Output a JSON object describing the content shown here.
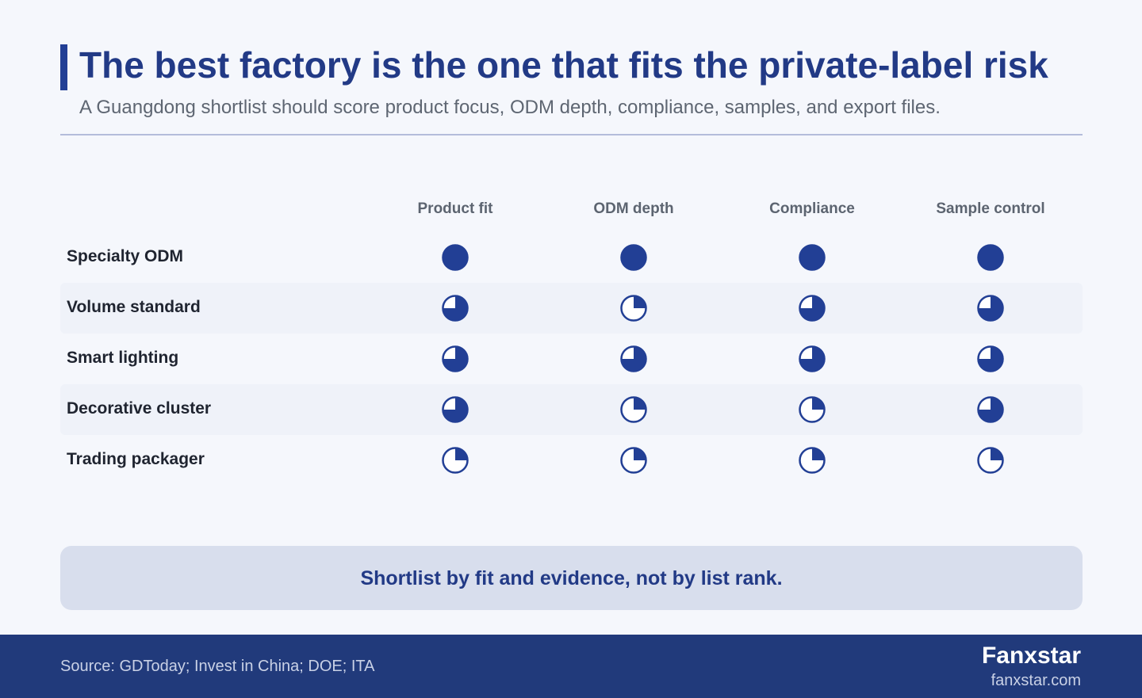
{
  "header": {
    "title": "The best factory is the one that fits the private-label risk",
    "subtitle": "A Guangdong shortlist should score product focus, ODM depth, compliance, samples, and export files."
  },
  "chart_data": {
    "type": "table",
    "encoding": "harvey-ball",
    "scale_max": 1.0,
    "columns": [
      "Product fit",
      "ODM depth",
      "Compliance",
      "Sample control"
    ],
    "rows": [
      {
        "label": "Specialty ODM",
        "values": [
          1.0,
          1.0,
          1.0,
          1.0
        ]
      },
      {
        "label": "Volume standard",
        "values": [
          0.75,
          0.25,
          0.75,
          0.75
        ]
      },
      {
        "label": "Smart lighting",
        "values": [
          0.75,
          0.75,
          0.75,
          0.75
        ]
      },
      {
        "label": "Decorative cluster",
        "values": [
          0.75,
          0.25,
          0.25,
          0.75
        ]
      },
      {
        "label": "Trading packager",
        "values": [
          0.25,
          0.25,
          0.25,
          0.25
        ]
      }
    ]
  },
  "callout": {
    "text": "Shortlist by fit and evidence, not by list rank."
  },
  "footer": {
    "source": "Source: GDToday; Invest in China; DOE; ITA",
    "brand": "Fanxstar",
    "url": "fanxstar.com"
  },
  "colors": {
    "accent": "#223f95",
    "title": "#223a86",
    "footer_bg": "#213a7b",
    "callout_bg": "#d8deed"
  }
}
